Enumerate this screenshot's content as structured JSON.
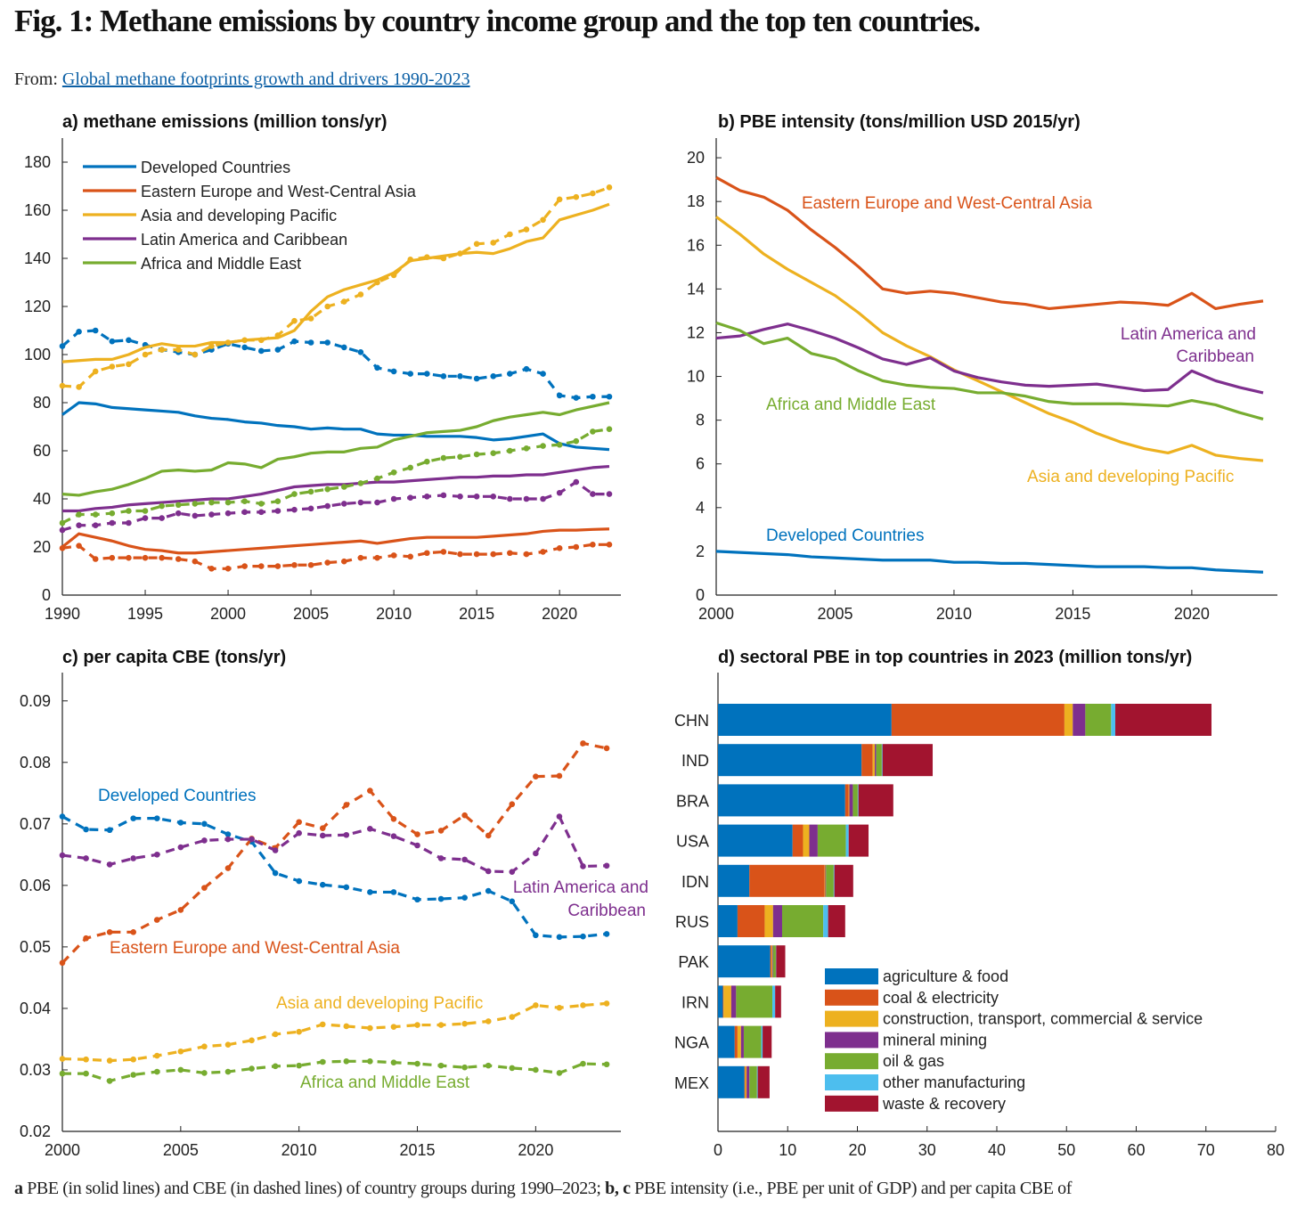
{
  "figure": {
    "title": "Fig. 1: Methane emissions by country income group and the top ten countries.",
    "from_label": "From:",
    "from_link": "Global methane footprints growth and drivers 1990-2023",
    "caption_a": "a",
    "caption_a_text": " PBE (in solid lines) and CBE (in dashed lines) of country groups during 1990–2023; ",
    "caption_bc": "b, c",
    "caption_bc_text": " PBE intensity (i.e., PBE per unit of GDP) and per capita CBE of"
  },
  "colors": {
    "developed": "#0072BD",
    "eastern": "#D95319",
    "asia": "#EDB120",
    "latam": "#7E2F8E",
    "africa": "#77AC30",
    "other_manufacturing": "#4DBEEE",
    "waste": "#A2142F"
  },
  "chart_data": [
    {
      "id": "a",
      "type": "line",
      "title": "a) methane emissions (million tons/yr)",
      "xlim": [
        1990,
        2023.7
      ],
      "ylim": [
        0,
        190
      ],
      "xticks": [
        1990,
        1995,
        2000,
        2005,
        2010,
        2015,
        2020
      ],
      "yticks": [
        0,
        20,
        40,
        60,
        80,
        100,
        120,
        140,
        160,
        180
      ],
      "x_start": 1990,
      "legend": [
        "Developed Countries",
        "Eastern Europe and West-Central Asia",
        "Asia and developing Pacific",
        "Latin America and Caribbean",
        "Africa and Middle East"
      ],
      "legend_placement": "top-left",
      "series": [
        {
          "name": "Developed Countries PBE",
          "group": "developed",
          "style": "solid",
          "values": [
            75,
            80,
            79.5,
            78,
            77.5,
            77,
            76.5,
            76,
            74.5,
            73.5,
            73,
            72,
            71.5,
            70.5,
            70,
            69,
            69.5,
            69,
            69,
            67,
            66.5,
            66.5,
            66,
            66,
            66,
            65.5,
            64.5,
            65,
            66,
            67,
            63,
            61.5,
            61,
            60.5
          ]
        },
        {
          "name": "Developed Countries CBE",
          "group": "developed",
          "style": "dashed",
          "values": [
            103.5,
            109.5,
            110,
            105.5,
            106,
            104,
            102,
            101,
            100,
            102,
            104.5,
            103,
            101.5,
            102,
            105.5,
            105,
            105,
            103,
            101,
            94.5,
            93,
            92,
            92,
            91,
            91,
            90,
            91,
            92,
            94,
            92,
            83,
            82,
            82.5,
            82.5
          ]
        },
        {
          "name": "Eastern Europe and West-Central Asia PBE",
          "group": "eastern",
          "style": "solid",
          "values": [
            20,
            25.5,
            24,
            22.5,
            20.5,
            19,
            18.5,
            17.5,
            17.5,
            18,
            18.5,
            19,
            19.5,
            20,
            20.5,
            21,
            21.5,
            22,
            22.5,
            21.5,
            22.5,
            23.5,
            24,
            24,
            24,
            24,
            24.5,
            25,
            25.5,
            26.5,
            27,
            27,
            27.3,
            27.5
          ]
        },
        {
          "name": "Eastern Europe and West-Central Asia CBE",
          "group": "eastern",
          "style": "dashed",
          "values": [
            19.5,
            20.5,
            15,
            15.5,
            15.5,
            15.5,
            15.5,
            15,
            14,
            11,
            11,
            12,
            12,
            12,
            12.5,
            12.5,
            13.5,
            14,
            15.5,
            15.5,
            16.5,
            16,
            17.5,
            18,
            17,
            17,
            17,
            17.5,
            17,
            18,
            19.5,
            20,
            21,
            21
          ]
        },
        {
          "name": "Asia and developing Pacific PBE",
          "group": "asia",
          "style": "solid",
          "values": [
            97,
            97.5,
            98,
            98,
            100,
            103,
            104.5,
            103.5,
            103.5,
            105,
            105,
            106,
            106.5,
            107,
            110,
            118,
            124,
            127,
            129,
            131,
            134,
            139,
            140,
            141,
            142,
            142.5,
            142,
            144,
            147,
            148.5,
            156,
            158,
            160,
            162.5
          ]
        },
        {
          "name": "Asia and developing Pacific CBE",
          "group": "asia",
          "style": "dashed",
          "values": [
            87,
            86.5,
            93,
            95,
            96,
            100,
            102,
            102,
            100,
            103.5,
            105,
            106,
            106,
            108,
            114,
            115,
            120,
            122,
            125,
            130,
            133,
            139.5,
            140.5,
            140,
            142,
            146,
            146.5,
            150,
            152,
            156,
            164.5,
            165.5,
            167,
            169.5
          ]
        },
        {
          "name": "Latin America and Caribbean PBE",
          "group": "latam",
          "style": "solid",
          "values": [
            35,
            35,
            36,
            36.5,
            37.5,
            38,
            38.5,
            39,
            39.5,
            40,
            40,
            41,
            42,
            43.5,
            45,
            45.5,
            46,
            46,
            46.5,
            47,
            47,
            47.5,
            48,
            48.5,
            49,
            49,
            49.5,
            49.5,
            50,
            50,
            51,
            52,
            53,
            53.5
          ]
        },
        {
          "name": "Latin America and Caribbean CBE",
          "group": "latam",
          "style": "dashed",
          "values": [
            27,
            29,
            29,
            30,
            30,
            32,
            32,
            34,
            33,
            33.5,
            34,
            34.5,
            34.5,
            35,
            35.5,
            36,
            37,
            38,
            38.5,
            38.5,
            40,
            40.5,
            41,
            41.5,
            41,
            41,
            41,
            40,
            40,
            40,
            42.5,
            47,
            42,
            42
          ]
        },
        {
          "name": "Africa and Middle East PBE",
          "group": "africa",
          "style": "solid",
          "values": [
            42,
            41.5,
            43,
            44,
            46,
            48.5,
            51.5,
            52,
            51.5,
            52,
            55,
            54.5,
            53,
            56.5,
            57.5,
            59,
            59.5,
            59.5,
            61,
            61.5,
            64.5,
            66,
            67.5,
            68,
            68.5,
            70,
            72.5,
            74,
            75,
            76,
            75,
            77,
            78.5,
            80
          ]
        },
        {
          "name": "Africa and Middle East CBE",
          "group": "africa",
          "style": "dashed",
          "values": [
            30,
            33.5,
            33.5,
            34,
            35,
            35,
            37,
            37.5,
            38,
            38.5,
            38.5,
            39,
            38,
            39,
            42,
            43,
            44,
            45,
            46.5,
            48.5,
            51,
            53,
            55.5,
            57,
            57.5,
            58.5,
            59,
            60,
            61,
            62,
            62.5,
            64,
            68,
            69
          ]
        }
      ]
    },
    {
      "id": "b",
      "type": "line",
      "title": "b) PBE intensity (tons/million USD 2015/yr)",
      "xlim": [
        2000,
        2023.6
      ],
      "ylim": [
        0,
        20.9
      ],
      "xticks": [
        2000,
        2005,
        2010,
        2015,
        2020
      ],
      "yticks": [
        0,
        2,
        4,
        6,
        8,
        10,
        12,
        14,
        16,
        18,
        20
      ],
      "x_start": 2000,
      "labels": {
        "eastern": "Eastern Europe and West-Central Asia",
        "latam_1": "Latin America and",
        "latam_2": "Caribbean",
        "africa": "Africa and Middle East",
        "asia": "Asia and developing Pacific",
        "developed": "Developed Countries"
      },
      "series": [
        {
          "name": "Eastern Europe and West-Central Asia",
          "group": "eastern",
          "style": "solid",
          "values": [
            19.1,
            18.5,
            18.2,
            17.6,
            16.7,
            15.9,
            15.0,
            14.0,
            13.8,
            13.9,
            13.8,
            13.6,
            13.4,
            13.3,
            13.1,
            13.2,
            13.3,
            13.4,
            13.35,
            13.25,
            13.8,
            13.1,
            13.3,
            13.45
          ]
        },
        {
          "name": "Asia and developing Pacific",
          "group": "asia",
          "style": "solid",
          "values": [
            17.3,
            16.5,
            15.6,
            14.9,
            14.3,
            13.7,
            12.9,
            12.0,
            11.4,
            10.9,
            10.3,
            9.8,
            9.3,
            8.8,
            8.3,
            7.9,
            7.4,
            7.0,
            6.7,
            6.5,
            6.85,
            6.4,
            6.25,
            6.15
          ]
        },
        {
          "name": "Latin America and Caribbean",
          "group": "latam",
          "style": "solid",
          "values": [
            11.75,
            11.85,
            12.15,
            12.4,
            12.1,
            11.75,
            11.3,
            10.8,
            10.55,
            10.85,
            10.25,
            9.95,
            9.75,
            9.6,
            9.55,
            9.6,
            9.65,
            9.5,
            9.35,
            9.4,
            10.25,
            9.8,
            9.5,
            9.25
          ]
        },
        {
          "name": "Africa and Middle East",
          "group": "africa",
          "style": "solid",
          "values": [
            12.45,
            12.1,
            11.5,
            11.75,
            11.05,
            10.8,
            10.25,
            9.8,
            9.6,
            9.5,
            9.45,
            9.25,
            9.25,
            9.1,
            8.85,
            8.75,
            8.75,
            8.75,
            8.7,
            8.65,
            8.9,
            8.7,
            8.35,
            8.05
          ]
        },
        {
          "name": "Developed Countries",
          "group": "developed",
          "style": "solid",
          "values": [
            2.0,
            1.95,
            1.9,
            1.85,
            1.75,
            1.7,
            1.65,
            1.6,
            1.6,
            1.6,
            1.5,
            1.5,
            1.45,
            1.45,
            1.4,
            1.35,
            1.3,
            1.3,
            1.3,
            1.25,
            1.25,
            1.15,
            1.1,
            1.05
          ]
        }
      ]
    },
    {
      "id": "c",
      "type": "line",
      "title": "c) per capita CBE (tons/yr)",
      "xlim": [
        2000,
        2023.6
      ],
      "ylim": [
        0.02,
        0.0946
      ],
      "xticks": [
        2000,
        2005,
        2010,
        2015,
        2020
      ],
      "yticks": [
        0.02,
        0.03,
        0.04,
        0.05,
        0.06,
        0.07,
        0.08,
        0.09
      ],
      "x_start": 2000,
      "labels": {
        "developed": "Developed Countries",
        "latam_1": "Latin America and",
        "latam_2": "Caribbean",
        "eastern": "Eastern Europe and West-Central Asia",
        "asia": "Asia and developing Pacific",
        "africa": "Africa and Middle East"
      },
      "series": [
        {
          "name": "Developed Countries",
          "group": "developed",
          "style": "dashed",
          "values": [
            0.0712,
            0.0691,
            0.069,
            0.0709,
            0.0709,
            0.0702,
            0.07,
            0.0683,
            0.0671,
            0.062,
            0.0607,
            0.0601,
            0.0597,
            0.0589,
            0.0589,
            0.0577,
            0.0578,
            0.058,
            0.0591,
            0.0574,
            0.0519,
            0.0516,
            0.0517,
            0.0521
          ]
        },
        {
          "name": "Eastern Europe and West-Central Asia",
          "group": "eastern",
          "style": "dashed",
          "values": [
            0.0474,
            0.0514,
            0.0524,
            0.0524,
            0.0544,
            0.056,
            0.0596,
            0.0628,
            0.0676,
            0.0661,
            0.0703,
            0.0693,
            0.0731,
            0.0754,
            0.0708,
            0.0683,
            0.0689,
            0.0714,
            0.0681,
            0.0732,
            0.0777,
            0.0778,
            0.0831,
            0.0823
          ]
        },
        {
          "name": "Latin America and Caribbean",
          "group": "latam",
          "style": "dashed",
          "values": [
            0.0649,
            0.0644,
            0.0634,
            0.0644,
            0.065,
            0.0662,
            0.0673,
            0.0675,
            0.0675,
            0.0657,
            0.0685,
            0.0681,
            0.0682,
            0.0692,
            0.068,
            0.0665,
            0.0644,
            0.0642,
            0.0623,
            0.0622,
            0.0652,
            0.0712,
            0.0631,
            0.0632
          ]
        },
        {
          "name": "Asia and developing Pacific",
          "group": "asia",
          "style": "dashed",
          "values": [
            0.0318,
            0.0317,
            0.0315,
            0.0317,
            0.0323,
            0.033,
            0.0338,
            0.0341,
            0.0348,
            0.0358,
            0.0362,
            0.0374,
            0.0371,
            0.0368,
            0.037,
            0.0373,
            0.0373,
            0.0375,
            0.0379,
            0.0386,
            0.0405,
            0.0401,
            0.0405,
            0.0408
          ]
        },
        {
          "name": "Africa and Middle East",
          "group": "africa",
          "style": "dashed",
          "values": [
            0.0294,
            0.0294,
            0.0282,
            0.0292,
            0.0297,
            0.03,
            0.0295,
            0.0297,
            0.0302,
            0.0306,
            0.0307,
            0.0313,
            0.0314,
            0.0314,
            0.0312,
            0.031,
            0.0307,
            0.0304,
            0.0307,
            0.0303,
            0.03,
            0.0295,
            0.031,
            0.0309
          ]
        }
      ]
    },
    {
      "id": "d",
      "type": "bar",
      "orientation": "horizontal-stacked",
      "title": "d) sectoral PBE in top countries in 2023 (million tons/yr)",
      "xlim": [
        0,
        80
      ],
      "xticks": [
        0,
        10,
        20,
        30,
        40,
        50,
        60,
        70,
        80
      ],
      "categories": [
        "CHN",
        "IND",
        "BRA",
        "USA",
        "IDN",
        "RUS",
        "PAK",
        "IRN",
        "NGA",
        "MEX"
      ],
      "legend_placement": "bottom-center",
      "series": [
        {
          "name": "agriculture & food",
          "color": "#0072BD",
          "values": [
            24.9,
            20.6,
            18.25,
            10.7,
            4.5,
            2.8,
            7.5,
            0.7,
            2.4,
            3.8
          ]
        },
        {
          "name": "coal & electricity",
          "color": "#D95319",
          "values": [
            24.8,
            1.6,
            0.5,
            1.5,
            10.8,
            3.9,
            0.2,
            0.1,
            0.4,
            0.1
          ]
        },
        {
          "name": "construction, transport, commercial & service",
          "color": "#EDB120",
          "values": [
            1.2,
            0.3,
            0.1,
            0.9,
            0.1,
            1.2,
            0.1,
            1.1,
            0.5,
            0.2
          ]
        },
        {
          "name": "mineral mining",
          "color": "#7E2F8E",
          "values": [
            1.8,
            0.2,
            0.5,
            1.2,
            0.1,
            1.3,
            0.1,
            0.7,
            0.4,
            0.4
          ]
        },
        {
          "name": "oil & gas",
          "color": "#77AC30",
          "values": [
            3.7,
            0.8,
            0.7,
            4.05,
            1.1,
            5.9,
            0.4,
            5.2,
            2.5,
            1.1
          ]
        },
        {
          "name": "other manufacturing",
          "color": "#4DBEEE",
          "values": [
            0.6,
            0.1,
            0.1,
            0.4,
            0.1,
            0.7,
            0.05,
            0.4,
            0.2,
            0.1
          ]
        },
        {
          "name": "waste & recovery",
          "color": "#A2142F",
          "values": [
            13.8,
            7.2,
            5.0,
            2.85,
            2.7,
            2.45,
            1.3,
            0.85,
            1.3,
            1.7
          ]
        }
      ]
    }
  ]
}
